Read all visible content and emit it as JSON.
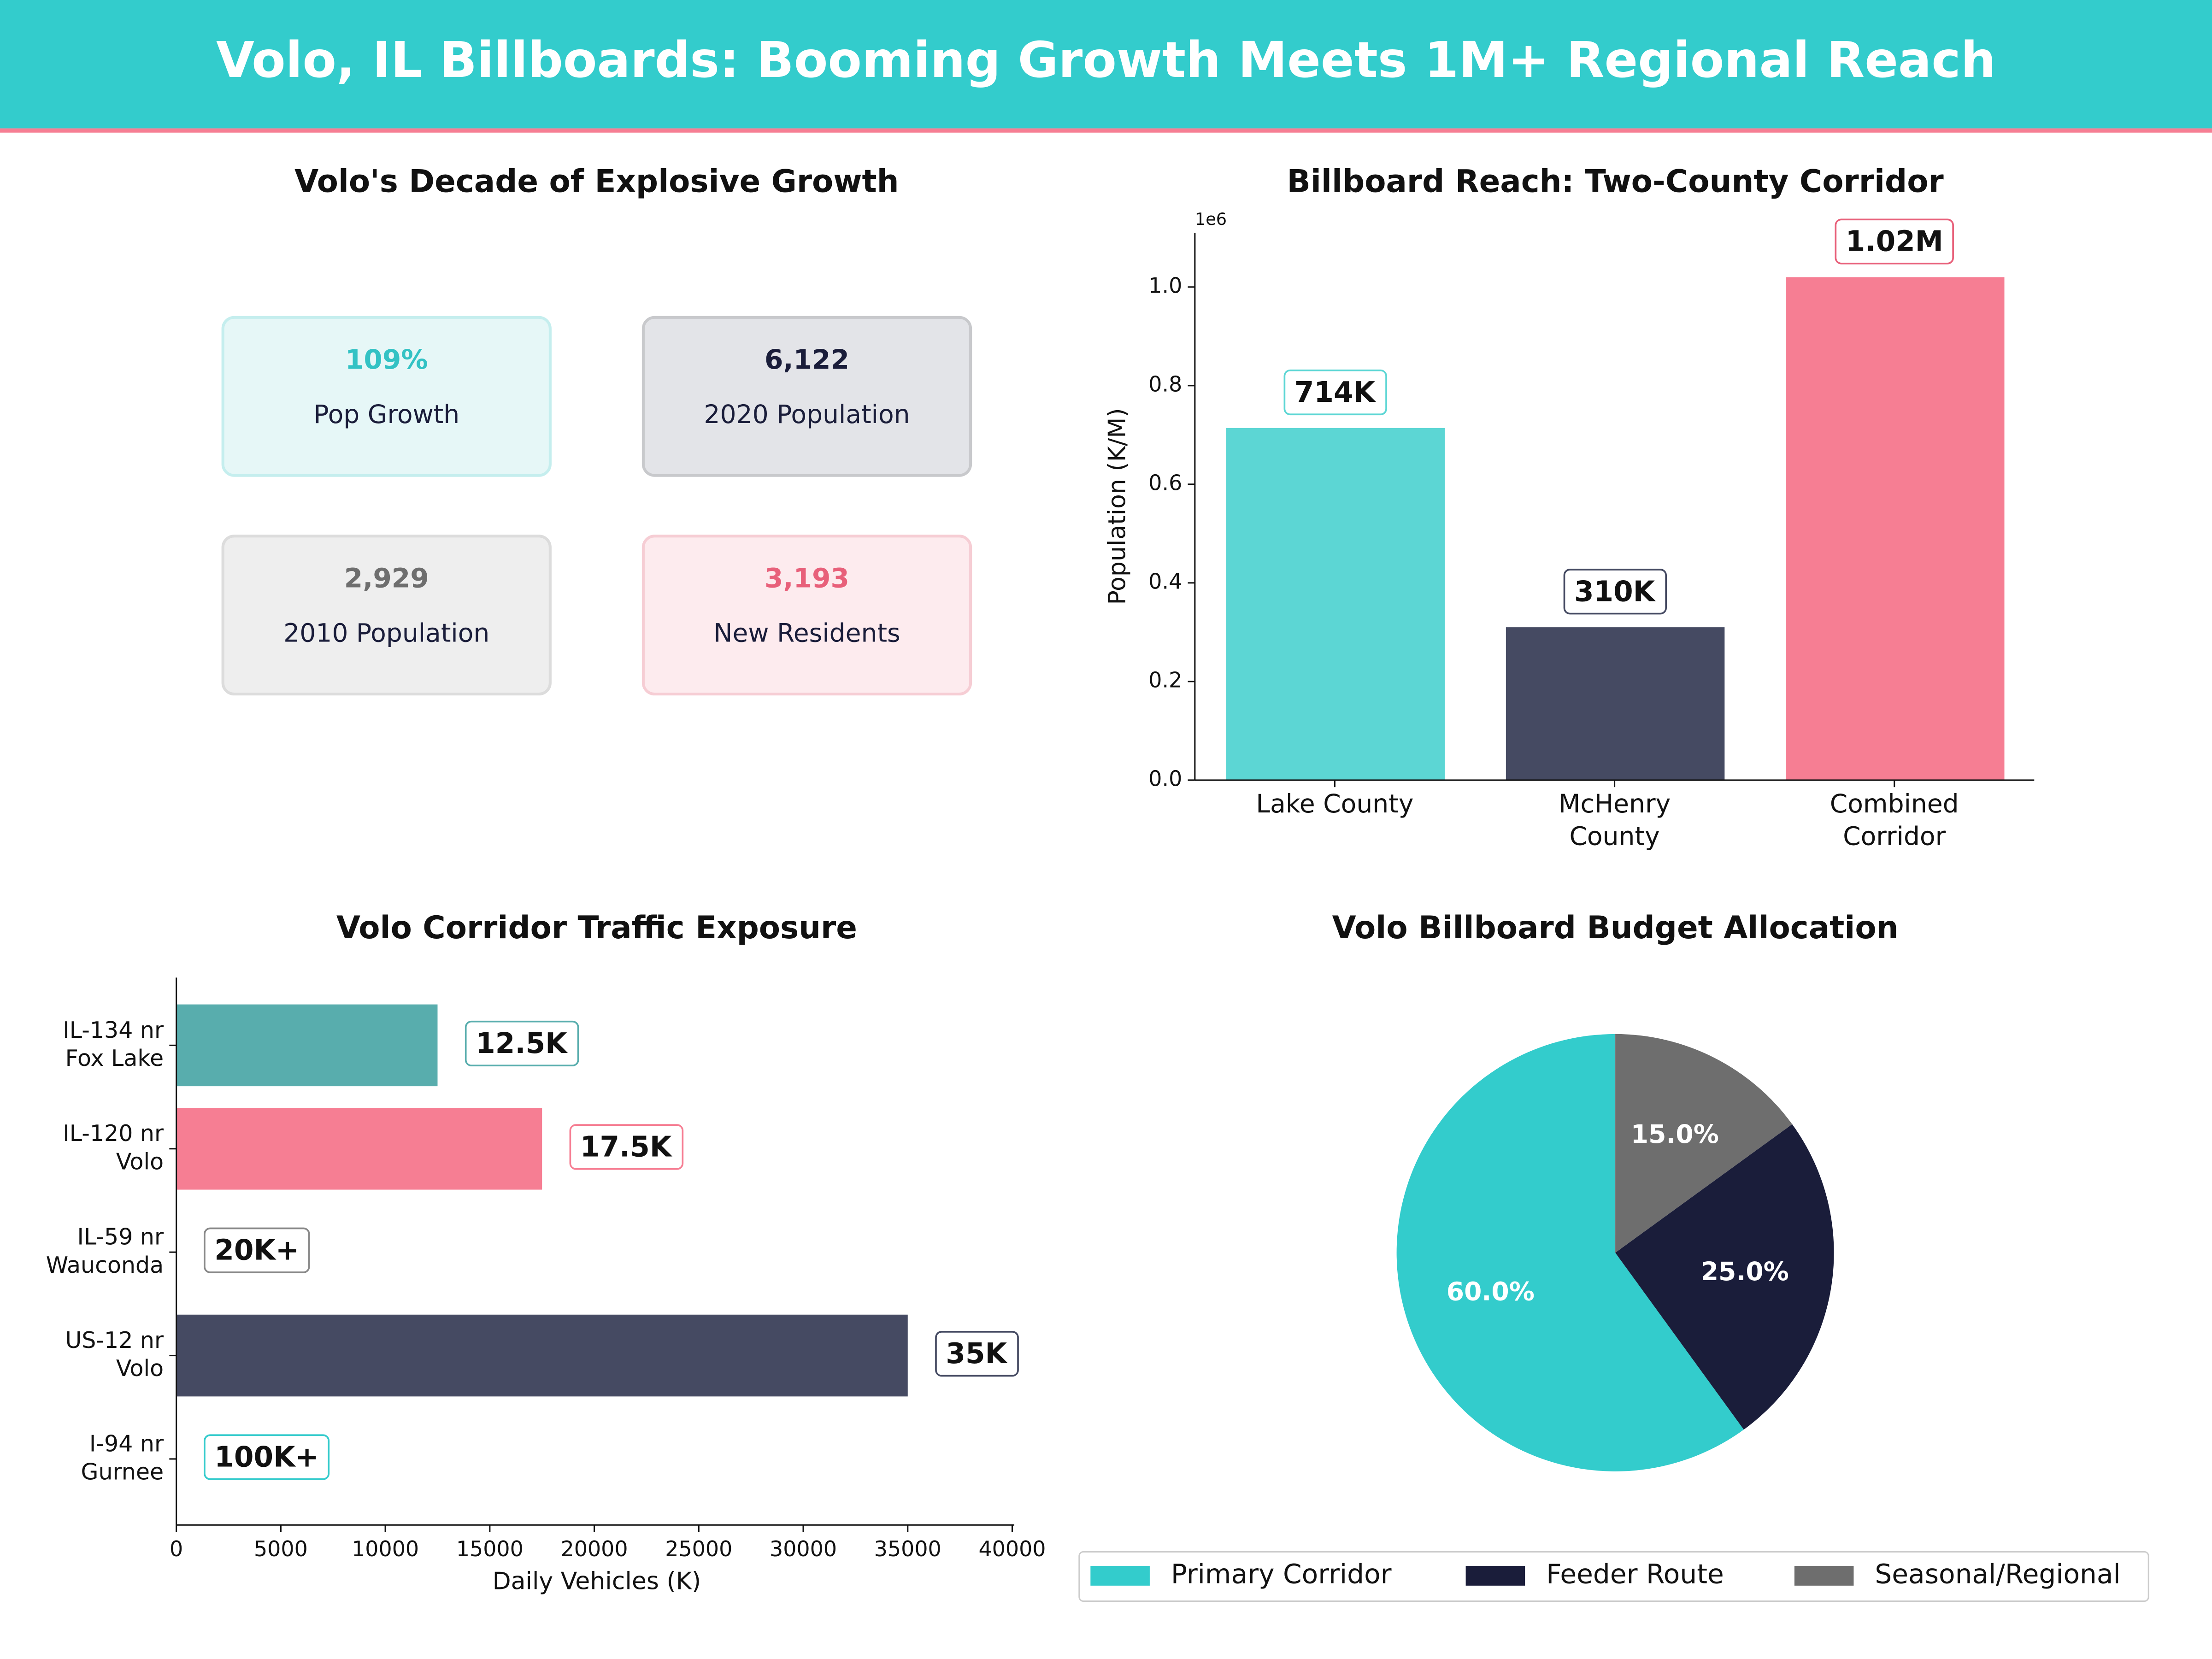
{
  "header": {
    "title": "Volo, IL Billboards: Booming Growth Meets 1M+ Regional Reach"
  },
  "kpi_panel": {
    "title": "Volo's Decade of Explosive Growth",
    "cards": [
      {
        "value": "109%",
        "label": "Pop Growth",
        "color": "#33c2c4",
        "background": "#e6f7f7",
        "border": "#c5eeee"
      },
      {
        "value": "6,122",
        "label": "2020 Population",
        "color": "#1a1d3a",
        "background": "#e3e4e8",
        "border": "#c8c9cc"
      },
      {
        "value": "2,929",
        "label": "2010 Population",
        "color": "#6e6e6e",
        "background": "#eeeeee",
        "border": "#dcdcdc"
      },
      {
        "value": "3,193",
        "label": "New Residents",
        "color": "#e8607a",
        "background": "#fdebee",
        "border": "#f6cdd4"
      }
    ]
  },
  "chart_data": [
    {
      "type": "bar",
      "title": "Billboard Reach: Two-County Corridor",
      "categories": [
        "Lake County",
        "McHenry\nCounty",
        "Combined\nCorridor"
      ],
      "values": [
        714000,
        310000,
        1020000
      ],
      "value_labels": [
        "714K",
        "310K",
        "1.02M"
      ],
      "colors": [
        "#5cd6d4",
        "#454a62",
        "#f67e93"
      ],
      "label_borders": [
        "#5cd6d4",
        "#454a62",
        "#e8607a"
      ],
      "ylabel": "Population (K/M)",
      "y_offset_label": "1e6",
      "ylim": [
        0,
        1110000
      ],
      "yticks": [
        {
          "value": 0,
          "label": "0.0"
        },
        {
          "value": 200000,
          "label": "0.2"
        },
        {
          "value": 400000,
          "label": "0.4"
        },
        {
          "value": 600000,
          "label": "0.6"
        },
        {
          "value": 800000,
          "label": "0.8"
        },
        {
          "value": 1000000,
          "label": "1.0"
        }
      ]
    },
    {
      "type": "hbar",
      "title": "Volo Corridor Traffic Exposure",
      "categories": [
        "IL-134 nr\nFox Lake",
        "IL-120 nr\nVolo",
        "IL-59 nr\nWauconda",
        "US-12 nr\nVolo",
        "I-94 nr\nGurnee"
      ],
      "values": [
        12500,
        17500,
        null,
        35000,
        null
      ],
      "value_labels": [
        "12.5K",
        "17.5K",
        "20K+",
        "35K",
        "100K+"
      ],
      "colors": [
        "#58adad",
        "#f67e93",
        "#888888",
        "#454a62",
        "#34cbcc"
      ],
      "xlabel": "Daily Vehicles (K)",
      "xlim": [
        0,
        40100
      ],
      "xticks": [
        0,
        5000,
        10000,
        15000,
        20000,
        25000,
        30000,
        35000,
        40000
      ]
    },
    {
      "type": "pie",
      "title": "Volo Billboard Budget Allocation",
      "categories": [
        "Primary Corridor",
        "Feeder Route",
        "Seasonal/Regional"
      ],
      "values": [
        60,
        25,
        15
      ],
      "value_labels": [
        "60.0%",
        "25.0%",
        "15.0%"
      ],
      "colors": [
        "#33cccc",
        "#1a1d3a",
        "#6e6e6e"
      ],
      "legend": "bottom"
    }
  ]
}
